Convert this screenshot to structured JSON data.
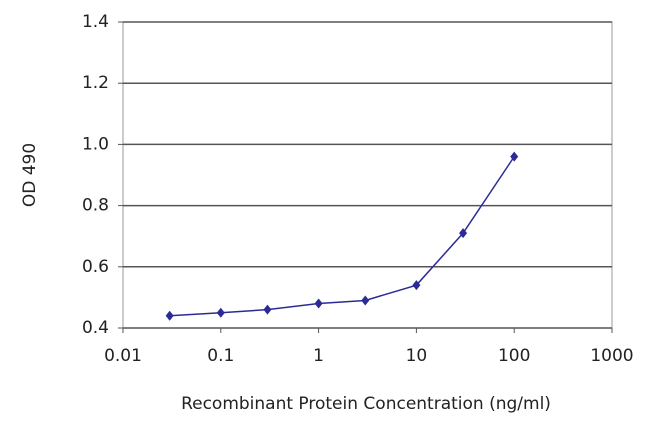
{
  "chart_data": {
    "type": "line",
    "x_label": "Recombinant Protein Concentration (ng/ml)",
    "y_label": "OD 490",
    "xscale": "log",
    "x": [
      0.03,
      0.1,
      0.3,
      1,
      3,
      10,
      30,
      100
    ],
    "series": [
      {
        "color": "#2b2b96",
        "values": [
          0.44,
          0.45,
          0.46,
          0.48,
          0.49,
          0.54,
          0.71,
          0.96
        ]
      }
    ],
    "xlim": [
      0.01,
      1000
    ],
    "xticks": [
      0.01,
      0.1,
      1,
      10,
      100,
      1000
    ],
    "ylim": [
      0.4,
      1.4
    ],
    "yticks": [
      0.4,
      0.6,
      0.8,
      {
        "value": 1,
        "label": "1.0"
      },
      1.2,
      1.4
    ],
    "grid": true
  }
}
